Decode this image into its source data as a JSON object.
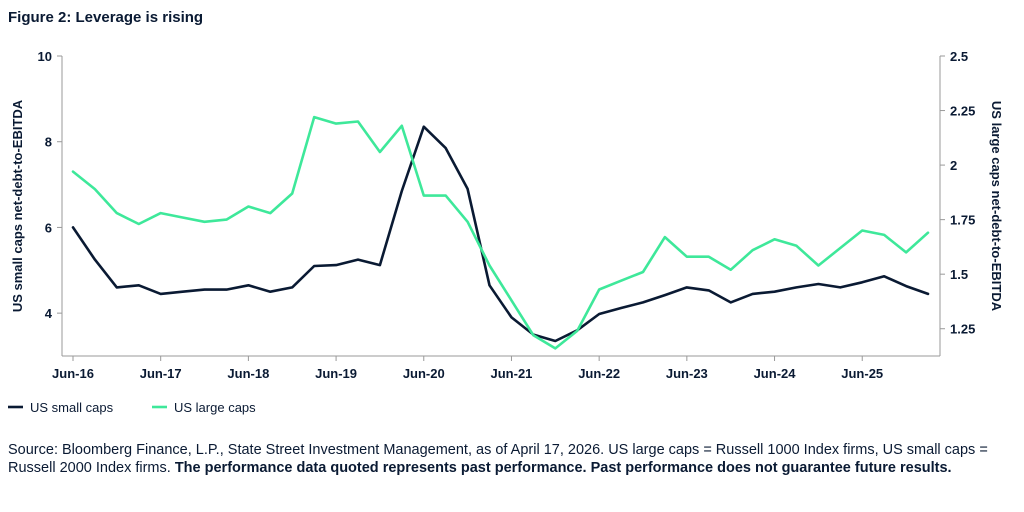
{
  "title": "Figure 2: Leverage is rising",
  "source": {
    "normal": "Source: Bloomberg Finance, L.P., State Street Investment Management, as of April 17, 2026.  US large caps = Russell 1000 Index firms, US small caps = Russell 2000 Index firms. ",
    "bold": "The performance data quoted represents past performance. Past performance does not guarantee future results."
  },
  "chart_data": {
    "type": "line",
    "title": "Figure 2: Leverage is rising",
    "xlabel": "",
    "ylabel_left": "US small caps net-debt-to-EBITDA",
    "ylabel_right": "US large caps net-debt-to-EBITDA",
    "x_ticks": [
      "Jun-16",
      "Jun-17",
      "Jun-18",
      "Jun-19",
      "Jun-20",
      "Jun-21",
      "Jun-22",
      "Jun-23",
      "Jun-24",
      "Jun-25"
    ],
    "x_range": [
      "2016-06",
      "2026-03"
    ],
    "y_left": {
      "min": 3,
      "max": 10,
      "ticks": [
        "4",
        "6",
        "8",
        "10"
      ]
    },
    "y_right": {
      "min": 1.125,
      "max": 2.5,
      "ticks": [
        "1.25",
        "1.5",
        "1.75",
        "2",
        "2.25",
        "2.5"
      ]
    },
    "grid": false,
    "legend_position": "bottom-left",
    "series": [
      {
        "name": "US small caps",
        "axis": "left",
        "color": "#0a1a33",
        "points": [
          [
            "2016-06",
            6.0
          ],
          [
            "2016-09",
            5.25
          ],
          [
            "2016-12",
            4.6
          ],
          [
            "2017-03",
            4.65
          ],
          [
            "2017-06",
            4.45
          ],
          [
            "2017-09",
            4.5
          ],
          [
            "2017-12",
            4.55
          ],
          [
            "2018-03",
            4.55
          ],
          [
            "2018-06",
            4.65
          ],
          [
            "2018-09",
            4.5
          ],
          [
            "2018-12",
            4.6
          ],
          [
            "2019-03",
            5.1
          ],
          [
            "2019-06",
            5.12
          ],
          [
            "2019-09",
            5.25
          ],
          [
            "2019-12",
            5.12
          ],
          [
            "2020-03",
            6.85
          ],
          [
            "2020-06",
            8.35
          ],
          [
            "2020-09",
            7.85
          ],
          [
            "2020-12",
            6.9
          ],
          [
            "2021-03",
            4.65
          ],
          [
            "2021-06",
            3.9
          ],
          [
            "2021-09",
            3.5
          ],
          [
            "2021-12",
            3.35
          ],
          [
            "2022-03",
            3.6
          ],
          [
            "2022-06",
            3.98
          ],
          [
            "2022-09",
            4.12
          ],
          [
            "2022-12",
            4.25
          ],
          [
            "2023-03",
            4.42
          ],
          [
            "2023-06",
            4.6
          ],
          [
            "2023-09",
            4.53
          ],
          [
            "2023-12",
            4.25
          ],
          [
            "2024-03",
            4.45
          ],
          [
            "2024-06",
            4.5
          ],
          [
            "2024-09",
            4.6
          ],
          [
            "2024-12",
            4.68
          ],
          [
            "2025-03",
            4.6
          ],
          [
            "2025-06",
            4.72
          ],
          [
            "2025-09",
            4.86
          ],
          [
            "2025-12",
            4.63
          ],
          [
            "2026-03",
            4.45
          ]
        ]
      },
      {
        "name": "US large caps",
        "axis": "right",
        "color": "#3ee89a",
        "points": [
          [
            "2016-06",
            1.97
          ],
          [
            "2016-09",
            1.89
          ],
          [
            "2016-12",
            1.78
          ],
          [
            "2017-03",
            1.73
          ],
          [
            "2017-06",
            1.78
          ],
          [
            "2017-09",
            1.76
          ],
          [
            "2017-12",
            1.74
          ],
          [
            "2018-03",
            1.75
          ],
          [
            "2018-06",
            1.81
          ],
          [
            "2018-09",
            1.78
          ],
          [
            "2018-12",
            1.87
          ],
          [
            "2019-03",
            2.22
          ],
          [
            "2019-06",
            2.19
          ],
          [
            "2019-09",
            2.2
          ],
          [
            "2019-12",
            2.06
          ],
          [
            "2020-03",
            2.18
          ],
          [
            "2020-06",
            1.86
          ],
          [
            "2020-09",
            1.86
          ],
          [
            "2020-12",
            1.74
          ],
          [
            "2021-03",
            1.54
          ],
          [
            "2021-06",
            1.38
          ],
          [
            "2021-09",
            1.22
          ],
          [
            "2021-12",
            1.16
          ],
          [
            "2022-03",
            1.24
          ],
          [
            "2022-06",
            1.43
          ],
          [
            "2022-09",
            1.47
          ],
          [
            "2022-12",
            1.51
          ],
          [
            "2023-03",
            1.67
          ],
          [
            "2023-06",
            1.58
          ],
          [
            "2023-09",
            1.58
          ],
          [
            "2023-12",
            1.52
          ],
          [
            "2024-03",
            1.61
          ],
          [
            "2024-06",
            1.66
          ],
          [
            "2024-09",
            1.63
          ],
          [
            "2024-12",
            1.54
          ],
          [
            "2025-03",
            1.62
          ],
          [
            "2025-06",
            1.7
          ],
          [
            "2025-09",
            1.68
          ],
          [
            "2025-12",
            1.6
          ],
          [
            "2026-03",
            1.69
          ]
        ]
      }
    ]
  }
}
